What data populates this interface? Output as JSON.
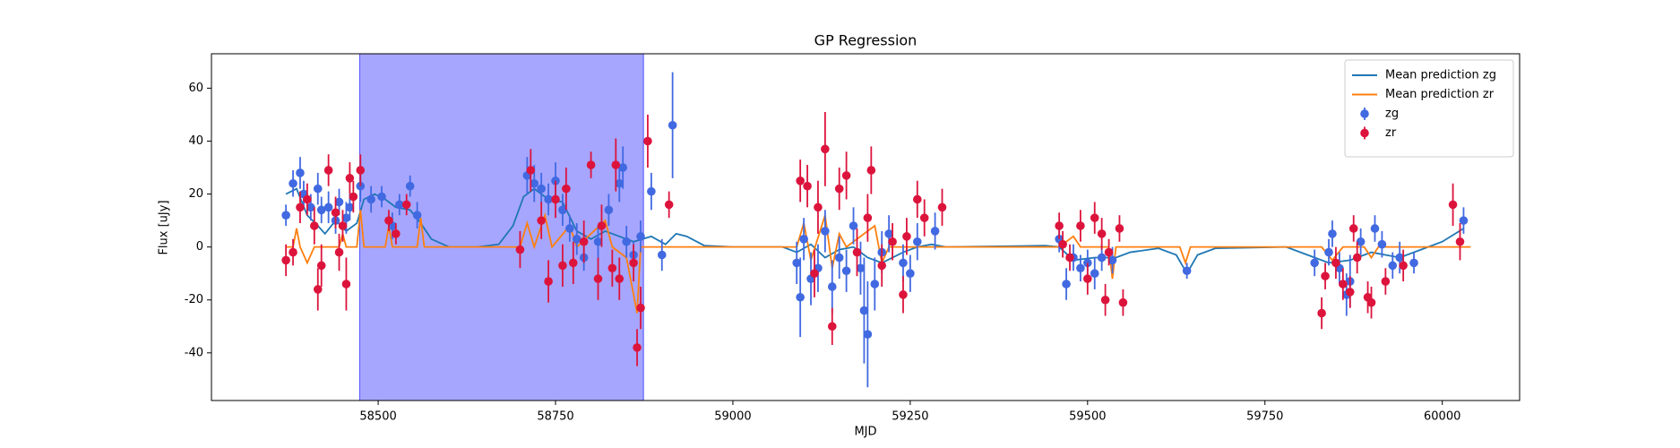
{
  "chart_data": {
    "type": "errorbar",
    "title": "GP Regression",
    "x_label": "MJD",
    "y_label": "Flux [uJy]",
    "xlim": [
      58265,
      60109
    ],
    "ylim": [
      -58,
      73
    ],
    "xticks": [
      58500,
      58750,
      59000,
      59250,
      59500,
      59750,
      60000
    ],
    "yticks": [
      -40,
      -20,
      0,
      20,
      40,
      60
    ],
    "legend": "upper right",
    "span": {
      "x": [
        58474,
        58874
      ],
      "color": "#0000ff",
      "opacity": 0.35
    },
    "series": [
      {
        "name": "Mean prediction zg",
        "type": "line",
        "color": "#1f77b4",
        "x": [
          58370,
          58385,
          58400,
          58415,
          58425,
          58440,
          58455,
          58470,
          58480,
          58495,
          58510,
          58525,
          58545,
          58560,
          58575,
          58600,
          58640,
          58670,
          58690,
          58705,
          58720,
          58740,
          58760,
          58780,
          58800,
          58820,
          58840,
          58860,
          58885,
          58905,
          58920,
          58935,
          58960,
          59000,
          59070,
          59090,
          59110,
          59130,
          59150,
          59170,
          59190,
          59210,
          59240,
          59260,
          59280,
          59300,
          59440,
          59460,
          59480,
          59510,
          59540,
          59560,
          59600,
          59625,
          59640,
          59655,
          59680,
          59780,
          59810,
          59840,
          59870,
          59900,
          59940,
          59970,
          60000,
          60030
        ],
        "values": [
          20,
          22,
          12,
          8,
          5,
          10,
          6,
          9,
          18,
          20,
          18,
          15,
          14,
          9,
          3,
          0,
          0,
          1,
          8,
          19,
          22,
          18,
          17,
          6,
          3,
          6,
          4,
          2,
          4,
          1,
          5,
          4,
          0.5,
          0,
          0,
          -2,
          1,
          -4,
          -1,
          0,
          -4,
          -6,
          -2,
          0,
          1,
          0,
          0.5,
          0,
          -5,
          -4,
          -4,
          -2,
          -0.5,
          -3,
          -10,
          -3,
          -0.5,
          0,
          -3,
          -6,
          -5,
          -2,
          -4,
          -1,
          2,
          7
        ]
      },
      {
        "name": "Mean prediction zr",
        "type": "line",
        "color": "#ff7f0e",
        "x": [
          58370,
          58380,
          58385,
          58390,
          58400,
          58410,
          58445,
          58450,
          58455,
          58470,
          58475,
          58480,
          58510,
          58515,
          58520,
          58555,
          58560,
          58565,
          58700,
          58710,
          58720,
          58735,
          58745,
          58770,
          58780,
          58820,
          58830,
          58850,
          58865,
          58870,
          59090,
          59100,
          59110,
          59130,
          59140,
          59150,
          59160,
          59200,
          59210,
          59220,
          59300,
          59460,
          59480,
          59490,
          59530,
          59535,
          59540,
          59630,
          59638,
          59645,
          59830,
          59845,
          59860,
          59890,
          59900,
          59910,
          60040
        ],
        "values": [
          0,
          0,
          7,
          0,
          -6,
          0,
          0,
          5,
          0,
          0,
          14,
          0,
          0,
          8,
          0,
          0,
          11,
          0,
          0,
          9,
          0,
          12,
          0,
          8,
          0,
          10,
          0,
          -4,
          -25,
          0,
          0,
          9,
          -5,
          12,
          -8,
          5,
          0,
          8,
          -6,
          0,
          0,
          0,
          4,
          0,
          0,
          -12,
          0,
          0,
          -6,
          0,
          0,
          -5,
          0,
          0,
          -4,
          0,
          0
        ]
      },
      {
        "name": "zg",
        "type": "errorbar",
        "color": "#4169e1",
        "x": [
          58370,
          58380,
          58390,
          58395,
          58405,
          58415,
          58420,
          58430,
          58440,
          58445,
          58455,
          58460,
          58475,
          58490,
          58505,
          58520,
          58530,
          58545,
          58555,
          58710,
          58720,
          58730,
          58740,
          58750,
          58760,
          58770,
          58780,
          58790,
          58810,
          58825,
          58840,
          58845,
          58850,
          58860,
          58870,
          58885,
          58900,
          58915,
          59090,
          59095,
          59100,
          59110,
          59120,
          59130,
          59140,
          59150,
          59160,
          59170,
          59180,
          59185,
          59190,
          59200,
          59210,
          59220,
          59240,
          59250,
          59260,
          59285,
          59460,
          59470,
          59480,
          59490,
          59500,
          59510,
          59520,
          59535,
          59640,
          59820,
          59840,
          59845,
          59855,
          59865,
          59870,
          59885,
          59905,
          59915,
          59930,
          59940,
          59960,
          60030
        ],
        "values": [
          12,
          24,
          28,
          20,
          15,
          22,
          14,
          15,
          10,
          17,
          11,
          15,
          23,
          18,
          19,
          8,
          16,
          23,
          12,
          27,
          24,
          22,
          18,
          25,
          14,
          7,
          3,
          -4,
          2,
          14,
          24,
          30,
          2,
          -3,
          4,
          21,
          -3,
          46,
          -6,
          -19,
          3,
          -12,
          -8,
          6,
          -15,
          -4,
          -9,
          8,
          -8,
          -24,
          -33,
          -14,
          -2,
          5,
          -6,
          -10,
          2,
          6,
          3,
          -14,
          -4,
          -8,
          -6,
          -10,
          -4,
          -5,
          -9,
          -6,
          -2,
          5,
          -8,
          -18,
          -13,
          2,
          7,
          1,
          -7,
          -4,
          -6,
          10
        ],
        "errors": [
          4,
          5,
          6,
          5,
          5,
          6,
          5,
          6,
          5,
          5,
          6,
          5,
          6,
          5,
          4,
          5,
          4,
          4,
          5,
          7,
          7,
          6,
          6,
          7,
          6,
          5,
          6,
          5,
          6,
          6,
          7,
          8,
          6,
          5,
          6,
          7,
          6,
          20,
          8,
          15,
          8,
          10,
          9,
          8,
          10,
          8,
          8,
          7,
          10,
          20,
          20,
          10,
          8,
          7,
          7,
          7,
          7,
          7,
          5,
          6,
          5,
          5,
          5,
          6,
          5,
          5,
          3,
          5,
          5,
          5,
          6,
          8,
          10,
          5,
          5,
          5,
          5,
          6,
          4,
          5
        ]
      },
      {
        "name": "zr",
        "type": "errorbar",
        "color": "#dc143c",
        "x": [
          58370,
          58380,
          58390,
          58400,
          58410,
          58415,
          58420,
          58430,
          58440,
          58445,
          58450,
          58455,
          58460,
          58465,
          58475,
          58515,
          58525,
          58540,
          58700,
          58715,
          58730,
          58740,
          58750,
          58760,
          58765,
          58775,
          58790,
          58800,
          58810,
          58815,
          58830,
          58835,
          58840,
          58860,
          58865,
          58870,
          58880,
          58910,
          59095,
          59105,
          59115,
          59120,
          59130,
          59140,
          59150,
          59160,
          59175,
          59190,
          59195,
          59210,
          59225,
          59240,
          59245,
          59260,
          59270,
          59295,
          59460,
          59465,
          59475,
          59490,
          59500,
          59510,
          59520,
          59525,
          59530,
          59545,
          59550,
          59830,
          59835,
          59850,
          59860,
          59870,
          59875,
          59880,
          59895,
          59900,
          59920,
          59945,
          60015,
          60025
        ],
        "values": [
          -5,
          -2,
          15,
          18,
          8,
          -16,
          -7,
          29,
          13,
          -2,
          8,
          -14,
          26,
          19,
          29,
          10,
          5,
          16,
          -1,
          29,
          10,
          -13,
          18,
          -7,
          22,
          -6,
          2,
          31,
          -12,
          8,
          -8,
          31,
          -12,
          -6,
          -38,
          -23,
          40,
          16,
          25,
          23,
          -10,
          15,
          37,
          -30,
          22,
          27,
          -2,
          11,
          29,
          -7,
          2,
          -18,
          4,
          18,
          11,
          15,
          8,
          1,
          -4,
          8,
          -12,
          11,
          5,
          -20,
          -2,
          7,
          -21,
          -25,
          -11,
          -6,
          -14,
          -17,
          7,
          -4,
          -19,
          -21,
          -13,
          -7,
          16,
          2
        ],
        "errors": [
          6,
          5,
          6,
          6,
          7,
          8,
          8,
          6,
          6,
          7,
          6,
          10,
          6,
          6,
          6,
          4,
          4,
          4,
          7,
          8,
          7,
          8,
          7,
          8,
          8,
          8,
          8,
          5,
          8,
          8,
          7,
          10,
          8,
          7,
          7,
          8,
          10,
          5,
          8,
          8,
          9,
          10,
          14,
          7,
          8,
          9,
          9,
          9,
          9,
          8,
          7,
          7,
          7,
          7,
          7,
          7,
          5,
          5,
          5,
          6,
          6,
          6,
          6,
          6,
          5,
          5,
          5,
          6,
          5,
          6,
          6,
          6,
          5,
          6,
          6,
          6,
          5,
          6,
          8,
          7
        ]
      }
    ]
  }
}
